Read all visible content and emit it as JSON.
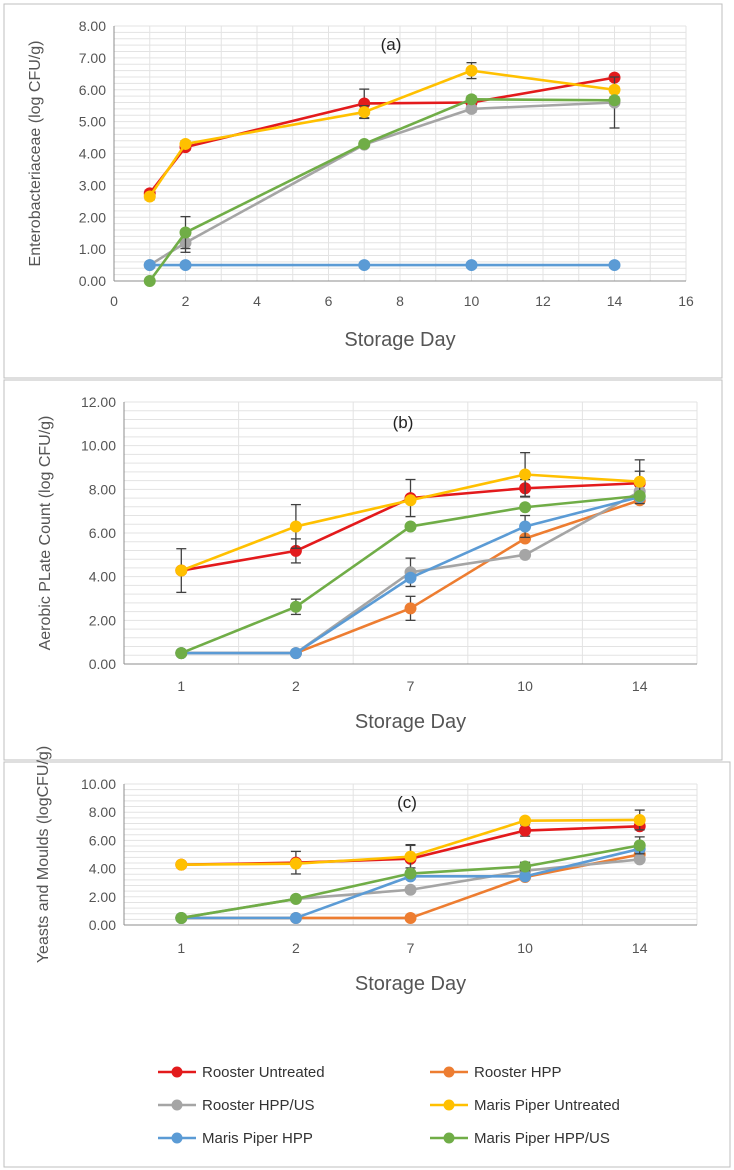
{
  "chart_data": [
    {
      "type": "line",
      "annotation": "(a)",
      "xlabel": "Storage Day",
      "ylabel": "Enterobacteriaceae (log CFU/g)",
      "x_scale": "linear",
      "xlim": [
        0,
        16
      ],
      "ylim": [
        0,
        8
      ],
      "x_ticks": [
        0,
        2,
        4,
        6,
        8,
        10,
        12,
        14,
        16
      ],
      "x_tick_labels": [
        "0",
        "2",
        "4",
        "6",
        "8",
        "10",
        "12",
        "14",
        "16"
      ],
      "y_ticks": [
        0,
        1,
        2,
        3,
        4,
        5,
        6,
        7,
        8
      ],
      "y_tick_labels": [
        "0.00",
        "1.00",
        "2.00",
        "3.00",
        "4.00",
        "5.00",
        "6.00",
        "7.00",
        "8.00"
      ],
      "x": [
        1,
        2,
        7,
        10,
        14
      ],
      "series": [
        {
          "name": "Rooster Untreated",
          "values": [
            2.75,
            4.2,
            5.57,
            5.6,
            6.38
          ],
          "errors": [
            0.1,
            0.1,
            0.45,
            0.1,
            0.1
          ]
        },
        {
          "name": "Rooster HPP/US",
          "values": [
            0.5,
            1.2,
            4.28,
            5.4,
            5.6
          ],
          "errors": [
            0,
            0.3,
            0,
            0.1,
            0.8
          ]
        },
        {
          "name": "Maris Piper Untreated",
          "values": [
            2.65,
            4.3,
            5.3,
            6.6,
            6.0
          ],
          "errors": [
            0.1,
            0.1,
            0.2,
            0.25,
            0.1
          ]
        },
        {
          "name": "Maris Piper HPP",
          "values": [
            0.5,
            0.5,
            0.5,
            0.5,
            0.5
          ],
          "errors": [
            0,
            0,
            0,
            0,
            0
          ]
        },
        {
          "name": "Maris Piper HPP/US",
          "values": [
            0.0,
            1.52,
            4.3,
            5.7,
            5.67
          ],
          "errors": [
            0,
            0.5,
            0,
            0.1,
            0.1
          ]
        }
      ]
    },
    {
      "type": "line",
      "annotation": "(b)",
      "xlabel": "Storage Day",
      "ylabel": "Aerobic PLate Count (log CFU/g)",
      "x_scale": "category",
      "categories": [
        "1",
        "2",
        "7",
        "10",
        "14"
      ],
      "ylim": [
        0,
        12
      ],
      "y_ticks": [
        0,
        2,
        4,
        6,
        8,
        10,
        12
      ],
      "y_tick_labels": [
        "0.00",
        "2.00",
        "4.00",
        "6.00",
        "8.00",
        "10.00",
        "12.00"
      ],
      "series": [
        {
          "name": "Rooster Untreated",
          "values": [
            4.28,
            5.18,
            7.6,
            8.05,
            8.28
          ],
          "errors": [
            1.0,
            0.55,
            0.85,
            0.4,
            0.55
          ]
        },
        {
          "name": "Rooster HPP",
          "values": [
            0.5,
            0.5,
            2.55,
            5.75,
            7.5
          ],
          "errors": [
            0,
            0,
            0.55,
            0,
            0
          ]
        },
        {
          "name": "Rooster HPP/US",
          "values": [
            0.5,
            0.5,
            4.2,
            5.0,
            7.9
          ],
          "errors": [
            0,
            0,
            0.65,
            0,
            0
          ]
        },
        {
          "name": "Maris Piper Untreated",
          "values": [
            4.28,
            6.3,
            7.5,
            8.68,
            8.35
          ],
          "errors": [
            0,
            1.0,
            0,
            1.0,
            1.0
          ]
        },
        {
          "name": "Maris Piper HPP",
          "values": [
            0.5,
            0.5,
            3.95,
            6.3,
            7.65
          ],
          "errors": [
            0,
            0,
            0,
            0.5,
            0
          ]
        },
        {
          "name": "Maris Piper HPP/US",
          "values": [
            0.5,
            2.62,
            6.3,
            7.18,
            7.7
          ],
          "errors": [
            0,
            0.35,
            0,
            0,
            0
          ]
        }
      ]
    },
    {
      "type": "line",
      "annotation": "(c)",
      "xlabel": "Storage Day",
      "ylabel": "Yeasts and Moulds (logCFU/g)",
      "x_scale": "category",
      "categories": [
        "1",
        "2",
        "7",
        "10",
        "14"
      ],
      "ylim": [
        0,
        10
      ],
      "y_ticks": [
        0,
        2,
        4,
        6,
        8,
        10
      ],
      "y_tick_labels": [
        "0.00",
        "2.00",
        "4.00",
        "6.00",
        "8.00",
        "10.00"
      ],
      "series": [
        {
          "name": "Rooster Untreated",
          "values": [
            4.28,
            4.42,
            4.7,
            6.7,
            7.0
          ],
          "errors": [
            0,
            0.8,
            1.0,
            0.4,
            0
          ]
        },
        {
          "name": "Rooster HPP",
          "values": [
            0.5,
            0.5,
            0.5,
            3.4,
            5.0
          ],
          "errors": [
            0,
            0,
            0,
            0,
            0
          ]
        },
        {
          "name": "Rooster HPP/US",
          "values": [
            0.5,
            1.85,
            2.5,
            3.85,
            4.65
          ],
          "errors": [
            0,
            0,
            0,
            0,
            0
          ]
        },
        {
          "name": "Maris Piper Untreated",
          "values": [
            4.28,
            4.35,
            4.85,
            7.4,
            7.45
          ],
          "errors": [
            0,
            0,
            0.8,
            0,
            0.7
          ]
        },
        {
          "name": "Maris Piper HPP",
          "values": [
            0.5,
            0.5,
            3.45,
            3.45,
            5.4
          ],
          "errors": [
            0,
            0,
            0,
            0,
            0
          ]
        },
        {
          "name": "Maris Piper HPP/US",
          "values": [
            0.5,
            1.85,
            3.65,
            4.15,
            5.65
          ],
          "errors": [
            0,
            0,
            0,
            0.3,
            0.6
          ]
        }
      ]
    }
  ],
  "legend": [
    {
      "name": "Rooster Untreated",
      "color": "#e31a1c"
    },
    {
      "name": "Rooster HPP",
      "color": "#ed7d31"
    },
    {
      "name": "Rooster HPP/US",
      "color": "#a5a5a5"
    },
    {
      "name": "Maris Piper Untreated",
      "color": "#ffc000"
    },
    {
      "name": "Maris Piper HPP",
      "color": "#5b9bd5"
    },
    {
      "name": "Maris Piper HPP/US",
      "color": "#70ad47"
    }
  ]
}
